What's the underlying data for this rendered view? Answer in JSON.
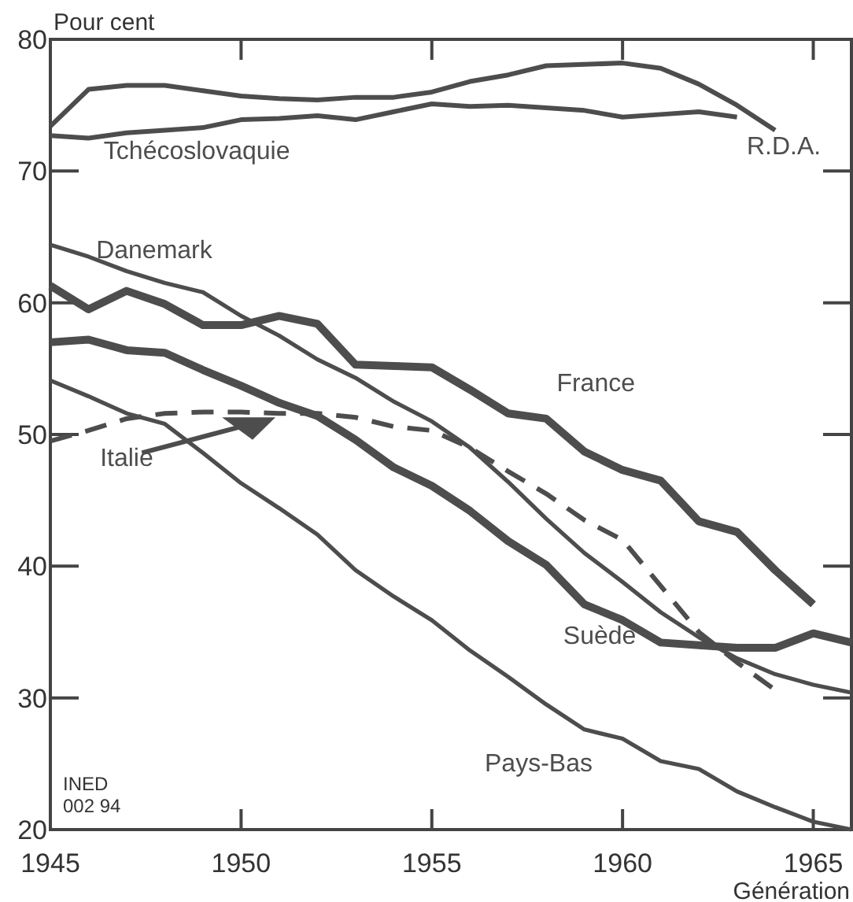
{
  "chart_data": {
    "type": "line",
    "xlabel": "Génération",
    "ylabel": "Pour cent",
    "xlim": [
      1945,
      1966
    ],
    "xticks": [
      1945,
      1950,
      1955,
      1960,
      1965
    ],
    "ylim": [
      20,
      80
    ],
    "yticks": [
      20,
      30,
      40,
      50,
      60,
      70,
      80
    ],
    "grid": false,
    "marker": "none",
    "annotations": [
      "INED\n002 94"
    ],
    "series": [
      {
        "name": "R.D.A.",
        "color": "#4d4d4d",
        "line_style": "solid",
        "x": [
          1945,
          1946,
          1947,
          1948,
          1949,
          1950,
          1951,
          1952,
          1953,
          1954,
          1955,
          1956,
          1957,
          1958,
          1959,
          1960,
          1961,
          1962,
          1963,
          1964
        ],
        "values": [
          73.4,
          76.2,
          76.5,
          76.5,
          76.1,
          75.7,
          75.5,
          75.4,
          75.6,
          75.6,
          76.0,
          76.8,
          77.3,
          78.0,
          78.1,
          78.2,
          77.8,
          76.6,
          75.0,
          73.1
        ]
      },
      {
        "name": "Tchécoslovaquie",
        "color": "#4d4d4d",
        "line_style": "solid",
        "x": [
          1945,
          1946,
          1947,
          1948,
          1949,
          1950,
          1951,
          1952,
          1953,
          1954,
          1955,
          1956,
          1957,
          1958,
          1959,
          1960,
          1961,
          1962,
          1963
        ],
        "values": [
          72.7,
          72.5,
          72.9,
          73.1,
          73.3,
          73.9,
          74.0,
          74.2,
          73.9,
          74.5,
          75.1,
          74.9,
          75.0,
          74.8,
          74.6,
          74.1,
          74.3,
          74.5,
          74.1
        ]
      },
      {
        "name": "Danemark",
        "color": "#4d4d4d",
        "line_style": "solid",
        "x": [
          1945,
          1946,
          1947,
          1948,
          1949,
          1950,
          1951,
          1952,
          1953,
          1954,
          1955,
          1956,
          1957,
          1958,
          1959,
          1960,
          1961,
          1962,
          1963,
          1964,
          1965,
          1966
        ],
        "values": [
          64.4,
          63.5,
          62.4,
          61.5,
          60.8,
          59.0,
          57.5,
          55.7,
          54.3,
          52.5,
          51.0,
          49.0,
          46.4,
          43.6,
          41.0,
          38.8,
          36.5,
          34.6,
          33.0,
          31.8,
          31.0,
          30.4
        ]
      },
      {
        "name": "France",
        "color": "#4d4d4d",
        "line_style": "solid",
        "x": [
          1945,
          1946,
          1947,
          1948,
          1949,
          1950,
          1951,
          1952,
          1953,
          1954,
          1955,
          1956,
          1957,
          1958,
          1959,
          1960,
          1961,
          1962,
          1963,
          1964,
          1965
        ],
        "values": [
          61.3,
          59.5,
          60.9,
          59.9,
          58.3,
          58.3,
          59.0,
          58.4,
          55.3,
          55.2,
          55.1,
          53.4,
          51.6,
          51.2,
          48.7,
          47.3,
          46.5,
          43.4,
          42.6,
          39.7,
          37.1
        ]
      },
      {
        "name": "Italie",
        "color": "#4d4d4d",
        "line_style": "dashed",
        "x": [
          1945,
          1946,
          1947,
          1948,
          1949,
          1950,
          1951,
          1952,
          1953,
          1954,
          1955,
          1956,
          1957,
          1958,
          1959,
          1960,
          1961,
          1962,
          1963,
          1964
        ],
        "values": [
          49.5,
          50.3,
          51.2,
          51.6,
          51.7,
          51.7,
          51.6,
          51.6,
          51.3,
          50.6,
          50.3,
          49.0,
          47.2,
          45.5,
          43.5,
          42.0,
          38.5,
          35.0,
          32.7,
          30.6
        ]
      },
      {
        "name": "Suède",
        "color": "#4d4d4d",
        "line_style": "solid",
        "x": [
          1945,
          1946,
          1947,
          1948,
          1949,
          1950,
          1951,
          1952,
          1953,
          1954,
          1955,
          1956,
          1957,
          1958,
          1959,
          1960,
          1961,
          1962,
          1963,
          1964,
          1965,
          1966
        ],
        "values": [
          57.0,
          57.2,
          56.4,
          56.2,
          54.9,
          53.7,
          52.4,
          51.4,
          49.6,
          47.5,
          46.1,
          44.2,
          41.9,
          40.1,
          37.1,
          35.9,
          34.2,
          34.0,
          33.8,
          33.8,
          34.9,
          34.2
        ]
      },
      {
        "name": "Pays-Bas",
        "color": "#4d4d4d",
        "line_style": "solid",
        "x": [
          1945,
          1946,
          1947,
          1948,
          1949,
          1950,
          1951,
          1952,
          1953,
          1954,
          1955,
          1956,
          1957,
          1958,
          1959,
          1960,
          1961,
          1962,
          1963,
          1964,
          1965,
          1966
        ],
        "values": [
          54.1,
          52.9,
          51.6,
          50.8,
          48.6,
          46.3,
          44.4,
          42.4,
          39.7,
          37.7,
          35.9,
          33.6,
          31.6,
          29.5,
          27.6,
          26.9,
          25.2,
          24.6,
          22.9,
          21.7,
          20.6,
          20.0
        ]
      }
    ]
  }
}
